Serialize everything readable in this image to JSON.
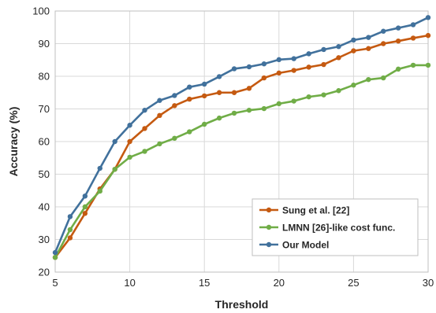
{
  "chart_data": {
    "type": "line",
    "title": "",
    "xlabel": "Threshold",
    "ylabel": "Accuracy (%)",
    "xlim": [
      5,
      30
    ],
    "ylim": [
      20,
      100
    ],
    "x_ticks": [
      5,
      10,
      15,
      20,
      25,
      30
    ],
    "y_ticks": [
      20,
      30,
      40,
      50,
      60,
      70,
      80,
      90,
      100
    ],
    "grid": true,
    "legend_position": "bottom-right",
    "x": [
      5,
      6,
      7,
      8,
      9,
      10,
      11,
      12,
      13,
      14,
      15,
      16,
      17,
      18,
      19,
      20,
      21,
      22,
      23,
      24,
      25,
      26,
      27,
      28,
      29,
      30
    ],
    "series": [
      {
        "name": "Sung et al. [22]",
        "color": "#c55a11",
        "values": [
          24.5,
          30.5,
          38,
          45.5,
          51.5,
          60,
          64,
          68,
          71,
          73,
          74,
          75,
          75,
          76.3,
          79.5,
          81,
          81.8,
          82.8,
          83.6,
          85.7,
          87.8,
          88.5,
          90,
          90.8,
          91.7,
          92.5
        ]
      },
      {
        "name": "LMNN [26]-like cost func.",
        "color": "#70ad47",
        "values": [
          24.5,
          33,
          40,
          44.8,
          51.5,
          55.2,
          57,
          59.3,
          61,
          63,
          65.3,
          67.2,
          68.7,
          69.6,
          70.1,
          71.6,
          72.4,
          73.7,
          74.3,
          75.6,
          77.3,
          79,
          79.5,
          82.2,
          83.4,
          83.4
        ]
      },
      {
        "name": "Our Model",
        "color": "#41719c",
        "values": [
          26,
          37,
          43.3,
          51.8,
          60,
          65,
          69.6,
          72.6,
          74.1,
          76.7,
          77.6,
          79.9,
          82.3,
          82.9,
          83.8,
          85.1,
          85.4,
          86.9,
          88.2,
          89.1,
          91.1,
          91.9,
          93.8,
          94.8,
          95.8,
          98
        ]
      }
    ]
  }
}
